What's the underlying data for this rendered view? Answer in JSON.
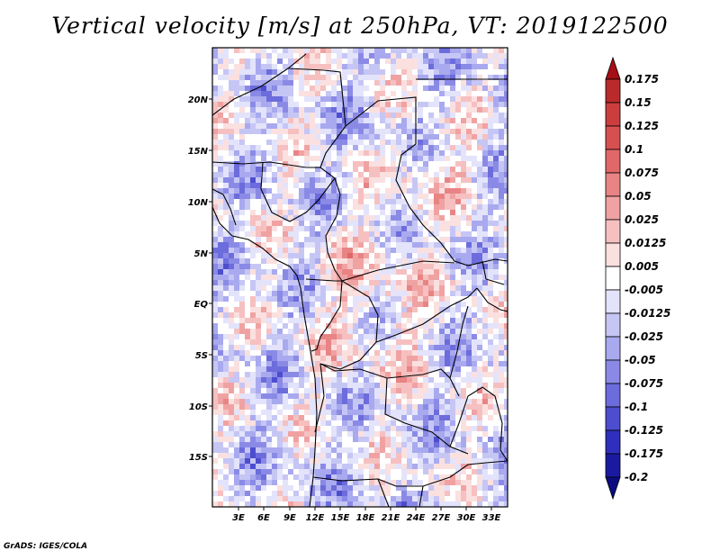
{
  "title": "Vertical velocity [m/s] at 250hPa, VT: 2019122500",
  "footer": "GrADS: IGES/COLA",
  "map": {
    "lat_labels": [
      "20N",
      "15N",
      "10N",
      "5N",
      "EQ",
      "5S",
      "10S",
      "15S"
    ],
    "lon_labels": [
      "3E",
      "6E",
      "9E",
      "12E",
      "15E",
      "18E",
      "21E",
      "24E",
      "27E",
      "30E",
      "33E"
    ],
    "colorbar": {
      "labels": [
        "0.175",
        "0.15",
        "0.125",
        "0.1",
        "0.075",
        "0.05",
        "0.025",
        "0.0125",
        "0.005",
        "-0.005",
        "-0.0125",
        "-0.025",
        "-0.05",
        "-0.075",
        "-0.1",
        "-0.125",
        "-0.175",
        "-0.2"
      ],
      "colors": [
        "#a50f15",
        "#bb2a2a",
        "#cc3e3e",
        "#d75050",
        "#e06868",
        "#e88484",
        "#f0a2a2",
        "#f6c0c0",
        "#fbe0e0",
        "#ffffff",
        "#e3e3fb",
        "#c6c6f5",
        "#a9a9ef",
        "#8a8ae6",
        "#6c6cdc",
        "#4d4dcf",
        "#2f2fbe",
        "#1a1aa0",
        "#0c0c80"
      ]
    }
  }
}
